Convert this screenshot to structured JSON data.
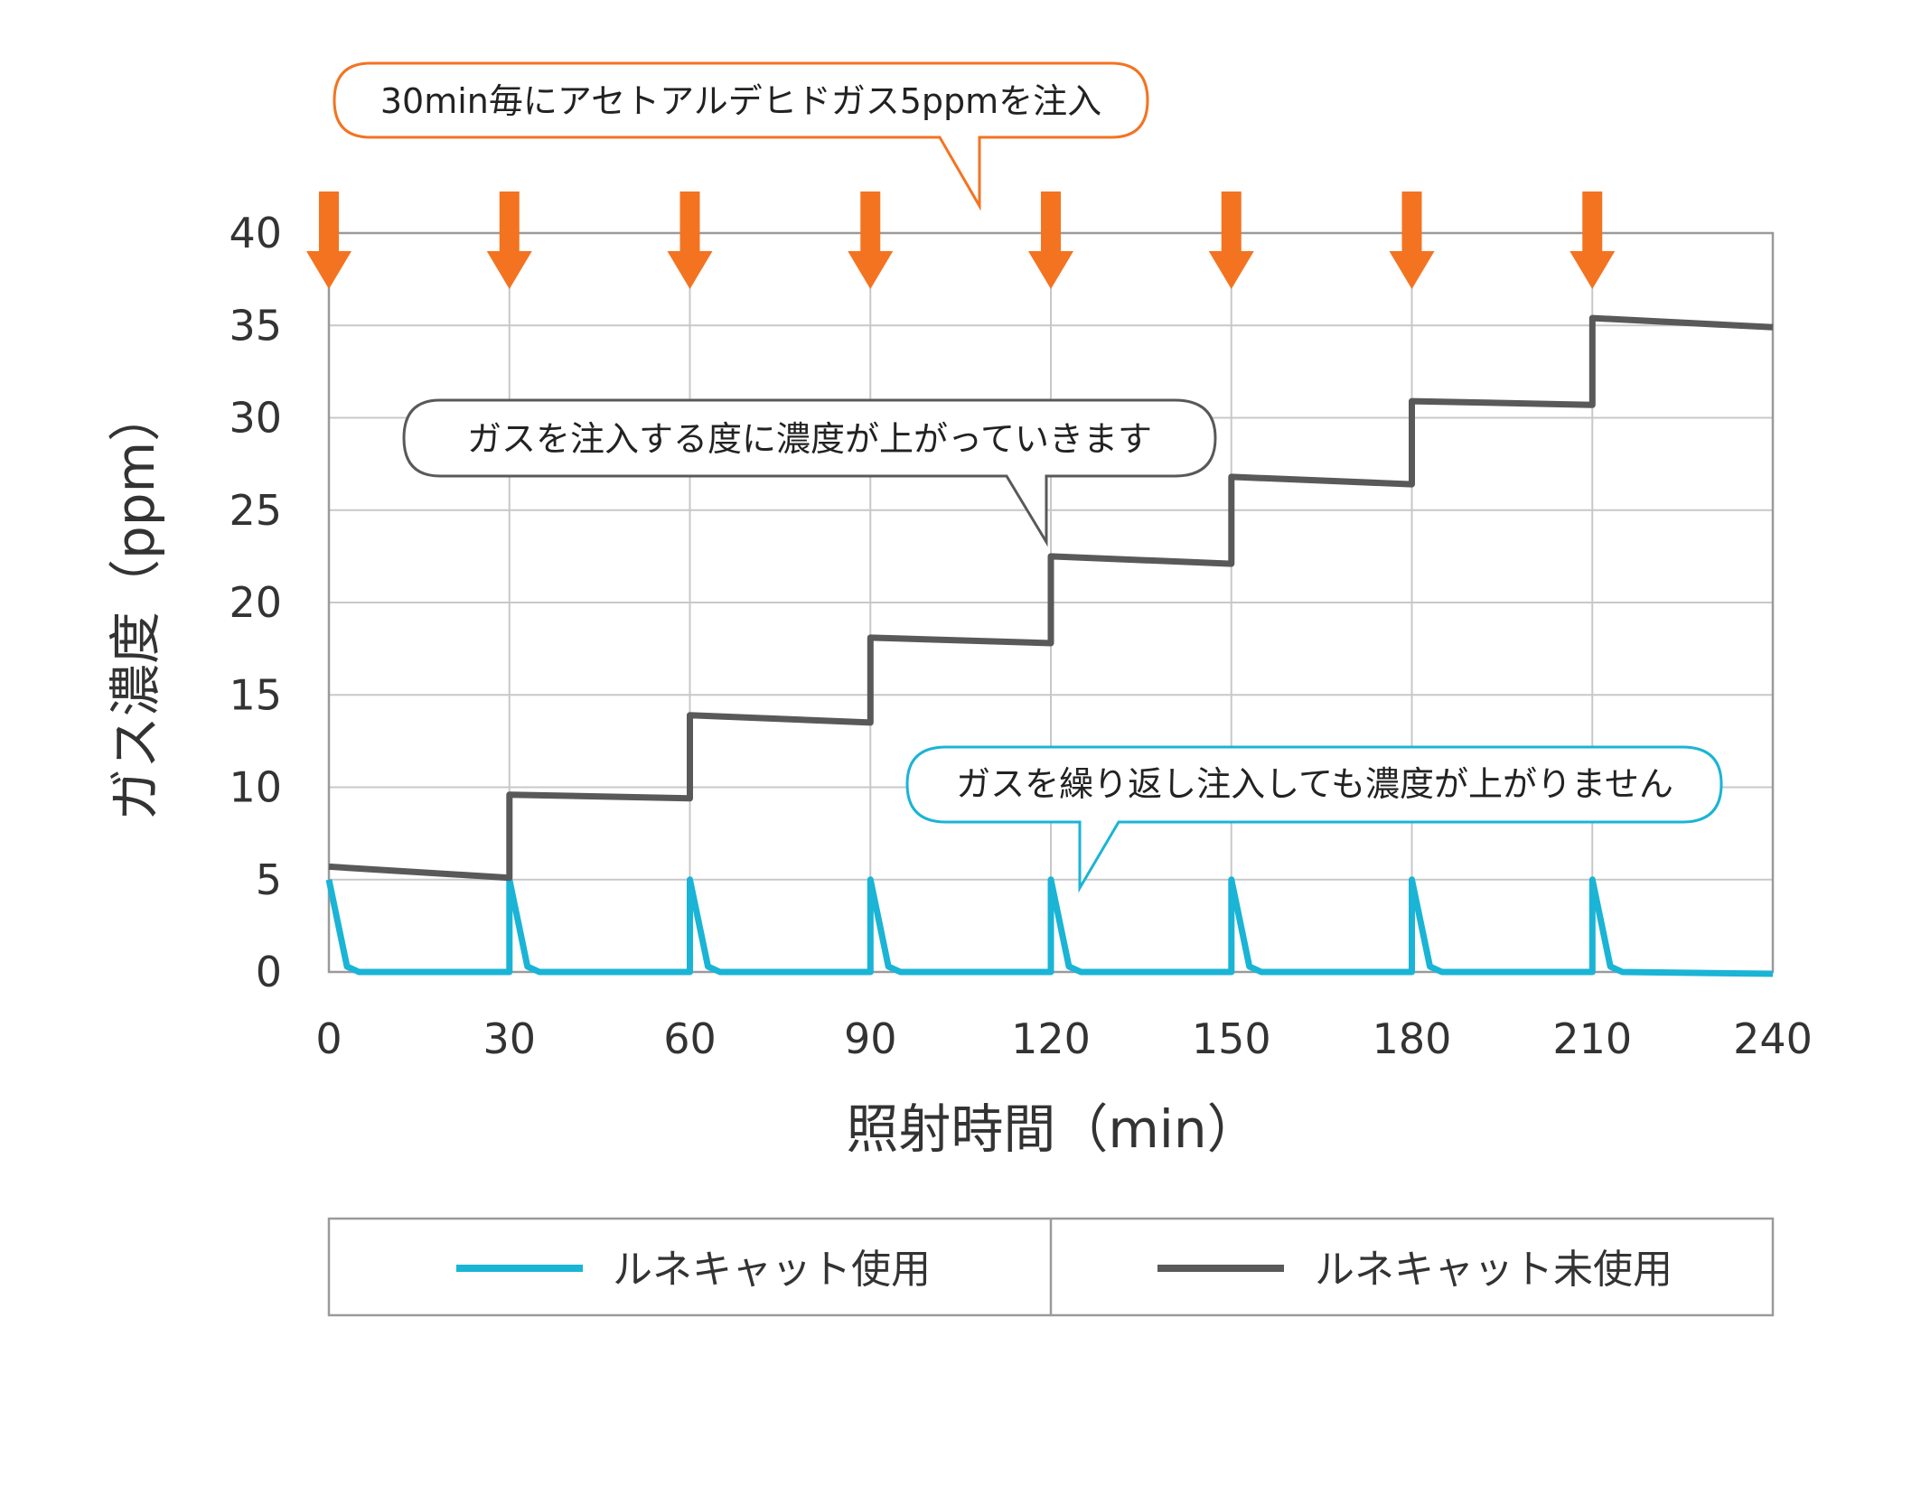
{
  "chart_data": {
    "type": "line",
    "xlabel": "照射時間（min）",
    "ylabel": "ガス濃度（ppm）",
    "xlim": [
      0,
      240
    ],
    "ylim": [
      0,
      40
    ],
    "x_ticks": [
      0,
      30,
      60,
      90,
      120,
      150,
      180,
      210,
      240
    ],
    "y_ticks": [
      0,
      5,
      10,
      15,
      20,
      25,
      30,
      35,
      40
    ],
    "grid": true,
    "legend_position": "bottom",
    "injection_times": [
      0,
      30,
      60,
      90,
      120,
      150,
      180,
      210
    ],
    "injection_marker_color": "#f47321",
    "series": [
      {
        "name": "ルネキャット使用",
        "color": "#1ab4d6",
        "points": [
          [
            0,
            5
          ],
          [
            3,
            0.3
          ],
          [
            5,
            0
          ],
          [
            30,
            0
          ],
          [
            30,
            5
          ],
          [
            33,
            0.3
          ],
          [
            35,
            0
          ],
          [
            60,
            0
          ],
          [
            60,
            5
          ],
          [
            63,
            0.3
          ],
          [
            65,
            0
          ],
          [
            90,
            0
          ],
          [
            90,
            5
          ],
          [
            93,
            0.3
          ],
          [
            95,
            0
          ],
          [
            120,
            0
          ],
          [
            120,
            5
          ],
          [
            123,
            0.3
          ],
          [
            125,
            0
          ],
          [
            150,
            0
          ],
          [
            150,
            5
          ],
          [
            153,
            0.3
          ],
          [
            155,
            0
          ],
          [
            180,
            0
          ],
          [
            180,
            5
          ],
          [
            183,
            0.3
          ],
          [
            185,
            0
          ],
          [
            210,
            0
          ],
          [
            210,
            5
          ],
          [
            213,
            0.3
          ],
          [
            215,
            0
          ],
          [
            240,
            -0.1
          ]
        ]
      },
      {
        "name": "ルネキャット未使用",
        "color": "#595959",
        "points": [
          [
            0,
            5.7
          ],
          [
            30,
            5.1
          ],
          [
            30,
            9.6
          ],
          [
            60,
            9.4
          ],
          [
            60,
            13.9
          ],
          [
            90,
            13.5
          ],
          [
            90,
            18.1
          ],
          [
            120,
            17.8
          ],
          [
            120,
            22.5
          ],
          [
            150,
            22.1
          ],
          [
            150,
            26.8
          ],
          [
            180,
            26.4
          ],
          [
            180,
            30.9
          ],
          [
            210,
            30.7
          ],
          [
            210,
            35.4
          ],
          [
            240,
            34.9
          ]
        ]
      }
    ],
    "annotations": [
      {
        "text": "30min毎にアセトアルデヒドガス5ppmを注入",
        "color": "#f47321"
      },
      {
        "text": "ガスを注入する度に濃度が上がっていきます",
        "color": "#595959"
      },
      {
        "text": "ガスを繰り返し注入しても濃度が上がりません",
        "color": "#1ab4d6"
      }
    ]
  }
}
